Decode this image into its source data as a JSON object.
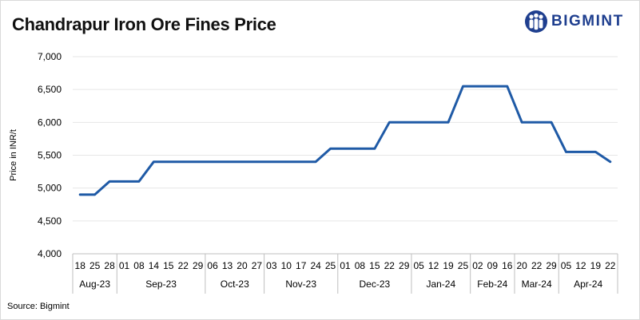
{
  "title": "Chandrapur Iron Ore Fines Price",
  "brand": "BIGMINT",
  "source": "Source: Bigmint",
  "colors": {
    "line": "#1f5aa6",
    "brand": "#1f3f8f",
    "grid": "#e6e6e6",
    "axis": "#bfbfbf"
  },
  "logo_icon": "three-people-icon",
  "chart_data": {
    "type": "line",
    "ylabel": "Price in INR/t",
    "xlabel": "",
    "ylim": [
      4000,
      7000
    ],
    "yticks": [
      "4,000",
      "4,500",
      "5,000",
      "5,500",
      "6,000",
      "6,500",
      "7,000"
    ],
    "grid": true,
    "x": [
      "18",
      "25",
      "28",
      "01",
      "08",
      "14",
      "15",
      "22",
      "29",
      "06",
      "13",
      "20",
      "27",
      "03",
      "10",
      "17",
      "24",
      "25",
      "01",
      "08",
      "15",
      "22",
      "29",
      "05",
      "12",
      "19",
      "25",
      "02",
      "09",
      "16",
      "20",
      "22",
      "29",
      "05",
      "12",
      "19",
      "22"
    ],
    "months": [
      {
        "label": "Aug-23",
        "count": 3
      },
      {
        "label": "Sep-23",
        "count": 6
      },
      {
        "label": "Oct-23",
        "count": 4
      },
      {
        "label": "Nov-23",
        "count": 5
      },
      {
        "label": "Dec-23",
        "count": 5
      },
      {
        "label": "Jan-24",
        "count": 4
      },
      {
        "label": "Feb-24",
        "count": 3
      },
      {
        "label": "Mar-24",
        "count": 3
      },
      {
        "label": "Apr-24",
        "count": 4
      }
    ],
    "series": [
      {
        "values": [
          4900,
          4900,
          5100,
          5100,
          5100,
          5400,
          5400,
          5400,
          5400,
          5400,
          5400,
          5400,
          5400,
          5400,
          5400,
          5400,
          5400,
          5600,
          5600,
          5600,
          5600,
          6000,
          6000,
          6000,
          6000,
          6000,
          6550,
          6550,
          6550,
          6550,
          6000,
          6000,
          6000,
          5550,
          5550,
          5550,
          5400
        ]
      }
    ]
  }
}
